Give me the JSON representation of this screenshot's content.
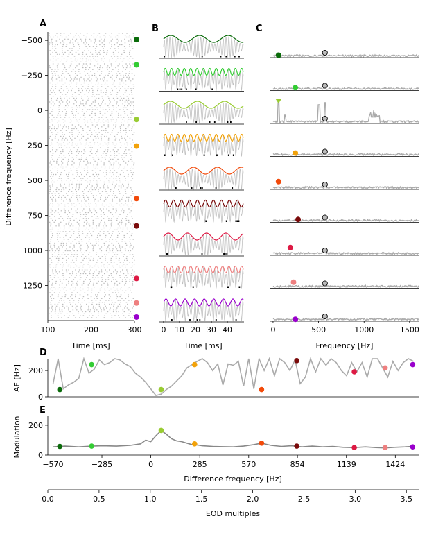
{
  "panel_labels": {
    "a": "A",
    "b": "B",
    "c": "C",
    "d": "D",
    "e": "E"
  },
  "colors": {
    "trace": "#aaaaaa",
    "raster": "#bbbbbb",
    "markers": [
      "#0a6b0a",
      "#33cc33",
      "#99cc33",
      "#f2a20a",
      "#f24a0a",
      "#7a0a0a",
      "#dd1a44",
      "#ee8080",
      "#9900cc"
    ]
  },
  "chart_data": [
    {
      "type": "scatter",
      "panel": "A",
      "xlabel": "Time [ms]",
      "ylabel": "Difference frequency [Hz]",
      "xlim": [
        100,
        300
      ],
      "ylim": [
        1500,
        -560
      ],
      "xticks": [
        100,
        200,
        300
      ],
      "yticks": [
        -500,
        -250,
        0,
        250,
        500,
        750,
        1000,
        1250
      ],
      "ytick_labels": [
        "−500",
        "−250",
        "0",
        "250",
        "500",
        "750",
        "1000",
        "1250"
      ],
      "marker_df": [
        -505,
        -325,
        65,
        255,
        630,
        825,
        1200,
        1375,
        1475
      ]
    },
    {
      "type": "line",
      "panel": "B",
      "xlabel": "Time [ms]",
      "xlim": [
        0,
        50
      ],
      "xticks": [
        0,
        10,
        20,
        30,
        40
      ],
      "rows": 9,
      "envelope_periods_ms": [
        18,
        4,
        17,
        4,
        15,
        5,
        12,
        4,
        6
      ]
    },
    {
      "type": "line",
      "panel": "C",
      "xlabel": "Frequency [Hz]",
      "xlim": [
        -30,
        1600
      ],
      "xticks": [
        0,
        500,
        1000,
        1500
      ],
      "vline_x": 285,
      "eod_x": 570,
      "marker_freqs": [
        60,
        245,
        60,
        245,
        60,
        275,
        190,
        225,
        245
      ],
      "marker_levels": [
        0.1,
        0.12,
        0.78,
        0.14,
        0.32,
        0.12,
        0.32,
        0.25,
        0.08
      ]
    },
    {
      "type": "line",
      "panel": "D",
      "ylabel": "AF [Hz]",
      "xlim": [
        -600,
        1560
      ],
      "ylim": [
        0,
        290
      ],
      "yticks": [
        0,
        200
      ],
      "x": [
        -570,
        -540,
        -510,
        -480,
        -450,
        -420,
        -390,
        -360,
        -330,
        -300,
        -270,
        -240,
        -210,
        -180,
        -150,
        -120,
        -90,
        -60,
        -30,
        0,
        30,
        60,
        90,
        120,
        150,
        180,
        210,
        240,
        270,
        300,
        330,
        360,
        390,
        420,
        450,
        480,
        510,
        540,
        570,
        600,
        630,
        660,
        690,
        720,
        750,
        780,
        810,
        840,
        870,
        900,
        930,
        960,
        990,
        1020,
        1050,
        1080,
        1110,
        1140,
        1170,
        1200,
        1230,
        1260,
        1290,
        1320,
        1350,
        1380,
        1410,
        1440,
        1470,
        1500,
        1530
      ],
      "y": [
        95,
        290,
        60,
        90,
        110,
        140,
        290,
        180,
        210,
        280,
        245,
        260,
        290,
        280,
        250,
        230,
        180,
        150,
        110,
        60,
        10,
        20,
        55,
        80,
        120,
        160,
        220,
        245,
        270,
        290,
        260,
        200,
        250,
        90,
        250,
        240,
        270,
        80,
        290,
        60,
        290,
        200,
        290,
        160,
        290,
        260,
        200,
        280,
        100,
        150,
        290,
        190,
        290,
        240,
        290,
        260,
        200,
        160,
        260,
        190,
        260,
        150,
        290,
        290,
        220,
        150,
        270,
        200,
        260,
        290,
        270
      ],
      "marker_x": [
        -530,
        -345,
        60,
        255,
        645,
        850,
        1185,
        1365,
        1525
      ],
      "marker_y": [
        55,
        245,
        55,
        245,
        55,
        275,
        190,
        220,
        245
      ]
    },
    {
      "type": "line",
      "panel": "E",
      "ylabel": "Modulation",
      "xlabel": "Difference frequency [Hz]",
      "xlim": [
        -600,
        1560
      ],
      "ylim": [
        0,
        260
      ],
      "yticks": [
        0,
        200
      ],
      "xticks": [
        -570,
        -285,
        0,
        285,
        570,
        854,
        1139,
        1424
      ],
      "xtick_labels": [
        "−570",
        "−285",
        "0",
        "285",
        "570",
        "854",
        "1139",
        "1424"
      ],
      "x": [
        -570,
        -500,
        -420,
        -345,
        -280,
        -200,
        -120,
        -60,
        -30,
        0,
        30,
        60,
        90,
        120,
        150,
        180,
        210,
        240,
        270,
        300,
        360,
        420,
        480,
        540,
        600,
        645,
        700,
        760,
        820,
        880,
        940,
        1000,
        1060,
        1120,
        1185,
        1250,
        1310,
        1365,
        1420,
        1480,
        1525
      ],
      "y": [
        55,
        60,
        55,
        60,
        62,
        60,
        65,
        75,
        100,
        90,
        130,
        165,
        140,
        110,
        95,
        90,
        80,
        70,
        68,
        62,
        58,
        56,
        55,
        60,
        70,
        80,
        65,
        58,
        62,
        55,
        60,
        55,
        58,
        52,
        50,
        55,
        50,
        48,
        52,
        55,
        58
      ],
      "marker_x": [
        -530,
        -345,
        60,
        255,
        645,
        850,
        1185,
        1365,
        1525
      ],
      "marker_y": [
        58,
        60,
        165,
        75,
        80,
        60,
        50,
        50,
        55
      ]
    },
    {
      "type": "line",
      "panel": "secondary-axis",
      "xlabel": "EOD multiples",
      "xticks": [
        0.0,
        0.5,
        1.0,
        1.5,
        2.0,
        2.5,
        3.0,
        3.5
      ],
      "xtick_labels": [
        "0.0",
        "0.5",
        "1.0",
        "1.5",
        "2.0",
        "2.5",
        "3.0",
        "3.5"
      ]
    }
  ]
}
